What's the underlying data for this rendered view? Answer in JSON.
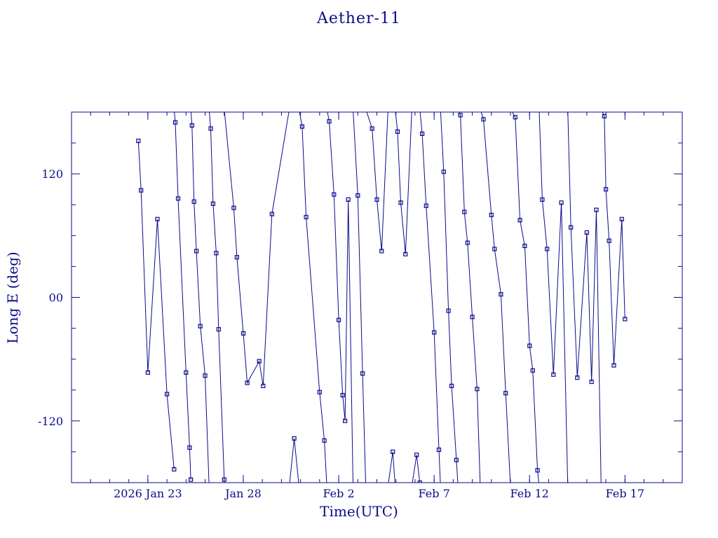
{
  "page": {
    "title": "Aether-11"
  },
  "chart_data": {
    "type": "line",
    "title": "Aether-11",
    "xlabel": "Time(UTC)",
    "ylabel": "Long E (deg)",
    "x_tick_labels": [
      "2026 Jan 23",
      "Jan 28",
      "Feb  2",
      "Feb  7",
      "Feb 12",
      "Feb 17"
    ],
    "x_tick_dates": [
      "2026-01-23",
      "2026-01-28",
      "2026-02-02",
      "2026-02-07",
      "2026-02-12",
      "2026-02-17"
    ],
    "xlim": [
      "2026-01-19",
      "2026-02-20"
    ],
    "y_tick_labels": [
      "120",
      "00",
      "-120"
    ],
    "y_tick_values": [
      120,
      0,
      -120
    ],
    "ylim": [
      -180,
      180
    ],
    "grid": false,
    "series": [
      {
        "color": "#0a0a8c",
        "marker": "square",
        "points": [
          {
            "x": "2026-01-22T12:00",
            "y": 152
          },
          {
            "x": "2026-01-22T15:30",
            "y": 104
          },
          {
            "x": "2026-01-23T00:00",
            "y": -73
          },
          {
            "x": "2026-01-23T12:00",
            "y": 76
          },
          {
            "x": "2026-01-24T00:00",
            "y": -94
          },
          {
            "x": "2026-01-24T09:00",
            "y": -167
          },
          {
            "x": "2026-01-24T09:00",
            "y": 183,
            "break": true
          },
          {
            "x": "2026-01-24T10:30",
            "y": 170
          },
          {
            "x": "2026-01-24T14:00",
            "y": 96
          },
          {
            "x": "2026-01-25T00:00",
            "y": -73
          },
          {
            "x": "2026-01-25T04:30",
            "y": -146
          },
          {
            "x": "2026-01-25T06:00",
            "y": -177
          },
          {
            "x": "2026-01-25T06:00",
            "y": 183,
            "break": true
          },
          {
            "x": "2026-01-25T07:30",
            "y": 167
          },
          {
            "x": "2026-01-25T10:00",
            "y": 93
          },
          {
            "x": "2026-01-25T13:00",
            "y": 45
          },
          {
            "x": "2026-01-25T18:00",
            "y": -28
          },
          {
            "x": "2026-01-26T00:00",
            "y": -76
          },
          {
            "x": "2026-01-26T05:00",
            "y": -183
          },
          {
            "x": "2026-01-26T05:00",
            "y": 183,
            "break": true
          },
          {
            "x": "2026-01-26T07:00",
            "y": 164
          },
          {
            "x": "2026-01-26T10:00",
            "y": 91
          },
          {
            "x": "2026-01-26T14:00",
            "y": 43
          },
          {
            "x": "2026-01-26T17:00",
            "y": -31
          },
          {
            "x": "2026-01-27T00:00",
            "y": -177
          },
          {
            "x": "2026-01-27T00:00",
            "y": 183,
            "break": true
          },
          {
            "x": "2026-01-27T12:00",
            "y": 87
          },
          {
            "x": "2026-01-27T16:00",
            "y": 39
          },
          {
            "x": "2026-01-28T00:00",
            "y": -35
          },
          {
            "x": "2026-01-28T05:00",
            "y": -83
          },
          {
            "x": "2026-01-28T20:00",
            "y": -62
          },
          {
            "x": "2026-01-29T01:00",
            "y": -86
          },
          {
            "x": "2026-01-29T12:00",
            "y": 81
          },
          {
            "x": "2026-01-30T10:00",
            "y": 183
          },
          {
            "x": "2026-01-30T10:00",
            "y": -183,
            "break": true
          },
          {
            "x": "2026-01-30T16:00",
            "y": -137
          },
          {
            "x": "2026-01-30T22:00",
            "y": -183
          },
          {
            "x": "2026-01-30T22:00",
            "y": 183,
            "break": true
          },
          {
            "x": "2026-01-31T02:00",
            "y": 166
          },
          {
            "x": "2026-01-31T07:00",
            "y": 78
          },
          {
            "x": "2026-02-01T00:00",
            "y": -92
          },
          {
            "x": "2026-02-01T06:00",
            "y": -139
          },
          {
            "x": "2026-02-01T09:00",
            "y": -183
          },
          {
            "x": "2026-02-01T09:00",
            "y": 183,
            "break": true
          },
          {
            "x": "2026-02-01T12:00",
            "y": 171
          },
          {
            "x": "2026-02-01T18:00",
            "y": 100
          },
          {
            "x": "2026-02-02T00:00",
            "y": -22
          },
          {
            "x": "2026-02-02T05:00",
            "y": -95
          },
          {
            "x": "2026-02-02T08:00",
            "y": -120
          },
          {
            "x": "2026-02-02T12:00",
            "y": 95
          },
          {
            "x": "2026-02-02T18:00",
            "y": -183
          },
          {
            "x": "2026-02-02T18:00",
            "y": 183,
            "break": true
          },
          {
            "x": "2026-02-03T00:00",
            "y": 99
          },
          {
            "x": "2026-02-03T06:00",
            "y": -74
          },
          {
            "x": "2026-02-03T10:00",
            "y": -183
          },
          {
            "x": "2026-02-03T10:00",
            "y": 183,
            "break": true
          },
          {
            "x": "2026-02-03T18:00",
            "y": 164
          },
          {
            "x": "2026-02-04T00:00",
            "y": 95
          },
          {
            "x": "2026-02-04T06:00",
            "y": 45
          },
          {
            "x": "2026-02-04T14:00",
            "y": 183
          },
          {
            "x": "2026-02-04T14:00",
            "y": -183,
            "break": true
          },
          {
            "x": "2026-02-04T20:00",
            "y": -150
          },
          {
            "x": "2026-02-04T23:00",
            "y": -183
          },
          {
            "x": "2026-02-04T23:00",
            "y": 183,
            "break": true
          },
          {
            "x": "2026-02-05T02:00",
            "y": 161
          },
          {
            "x": "2026-02-05T06:00",
            "y": 92
          },
          {
            "x": "2026-02-05T12:00",
            "y": 42
          },
          {
            "x": "2026-02-05T20:00",
            "y": 183
          },
          {
            "x": "2026-02-05T20:00",
            "y": -183,
            "break": true
          },
          {
            "x": "2026-02-06T02:00",
            "y": -153
          },
          {
            "x": "2026-02-06T06:00",
            "y": -180
          },
          {
            "x": "2026-02-06T06:00",
            "y": 183,
            "break": true
          },
          {
            "x": "2026-02-06T09:00",
            "y": 159
          },
          {
            "x": "2026-02-06T14:00",
            "y": 89
          },
          {
            "x": "2026-02-07T00:00",
            "y": -34
          },
          {
            "x": "2026-02-07T06:00",
            "y": -148
          },
          {
            "x": "2026-02-07T08:00",
            "y": -183
          },
          {
            "x": "2026-02-07T08:00",
            "y": 183,
            "break": true
          },
          {
            "x": "2026-02-07T12:00",
            "y": 122
          },
          {
            "x": "2026-02-07T18:00",
            "y": -13
          },
          {
            "x": "2026-02-07T22:00",
            "y": -86
          },
          {
            "x": "2026-02-08T04:00",
            "y": -158
          },
          {
            "x": "2026-02-08T06:00",
            "y": -183
          },
          {
            "x": "2026-02-08T06:00",
            "y": 183,
            "break": true
          },
          {
            "x": "2026-02-08T09:00",
            "y": 177
          },
          {
            "x": "2026-02-08T14:00",
            "y": 83
          },
          {
            "x": "2026-02-08T18:00",
            "y": 53
          },
          {
            "x": "2026-02-09T00:00",
            "y": -19
          },
          {
            "x": "2026-02-09T06:00",
            "y": -89
          },
          {
            "x": "2026-02-09T10:00",
            "y": -183
          },
          {
            "x": "2026-02-09T10:00",
            "y": 183,
            "break": true
          },
          {
            "x": "2026-02-09T14:00",
            "y": 173
          },
          {
            "x": "2026-02-10T00:00",
            "y": 80
          },
          {
            "x": "2026-02-10T04:00",
            "y": 47
          },
          {
            "x": "2026-02-10T12:00",
            "y": 3
          },
          {
            "x": "2026-02-10T18:00",
            "y": -93
          },
          {
            "x": "2026-02-11T00:00",
            "y": -183
          },
          {
            "x": "2026-02-11T00:00",
            "y": 183,
            "break": true
          },
          {
            "x": "2026-02-11T06:00",
            "y": 175
          },
          {
            "x": "2026-02-11T12:00",
            "y": 75
          },
          {
            "x": "2026-02-11T18:00",
            "y": 50
          },
          {
            "x": "2026-02-12T00:00",
            "y": -47
          },
          {
            "x": "2026-02-12T04:00",
            "y": -71
          },
          {
            "x": "2026-02-12T10:00",
            "y": -168
          },
          {
            "x": "2026-02-12T12:00",
            "y": -183
          },
          {
            "x": "2026-02-12T12:00",
            "y": 183,
            "break": true
          },
          {
            "x": "2026-02-12T16:00",
            "y": 95
          },
          {
            "x": "2026-02-12T22:00",
            "y": 47
          },
          {
            "x": "2026-02-13T06:00",
            "y": -75
          },
          {
            "x": "2026-02-13T16:00",
            "y": 92
          },
          {
            "x": "2026-02-14T00:00",
            "y": -183
          },
          {
            "x": "2026-02-14T00:00",
            "y": 183,
            "break": true
          },
          {
            "x": "2026-02-14T04:00",
            "y": 68
          },
          {
            "x": "2026-02-14T12:00",
            "y": -78
          },
          {
            "x": "2026-02-15T00:00",
            "y": 63
          },
          {
            "x": "2026-02-15T06:00",
            "y": -82
          },
          {
            "x": "2026-02-15T12:00",
            "y": 85
          },
          {
            "x": "2026-02-15T18:00",
            "y": -183
          },
          {
            "x": "2026-02-15T18:00",
            "y": 183,
            "break": true
          },
          {
            "x": "2026-02-15T22:00",
            "y": 176
          },
          {
            "x": "2026-02-16T00:00",
            "y": 105
          },
          {
            "x": "2026-02-16T04:00",
            "y": 55
          },
          {
            "x": "2026-02-16T10:00",
            "y": -66
          },
          {
            "x": "2026-02-16T20:00",
            "y": 76
          },
          {
            "x": "2026-02-17T00:00",
            "y": -21
          }
        ]
      }
    ]
  }
}
